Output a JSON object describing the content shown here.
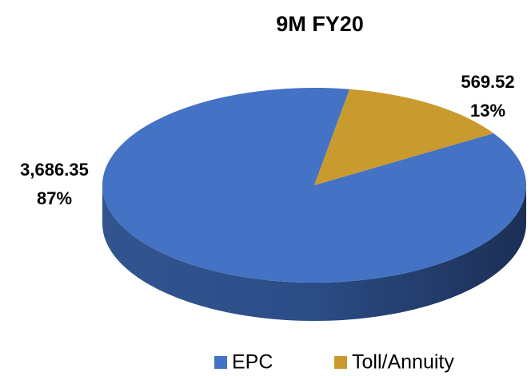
{
  "chart_data": {
    "type": "pie3d",
    "title": "9M FY20",
    "categories": [
      "EPC",
      "Toll/Annuity"
    ],
    "values": [
      3686.35,
      569.52
    ],
    "value_labels": [
      "3,686.35",
      "569.52"
    ],
    "percent_labels": [
      "87%",
      "13%"
    ],
    "colors": [
      "#4472c4",
      "#c99a2e"
    ],
    "legend": "bottom"
  }
}
